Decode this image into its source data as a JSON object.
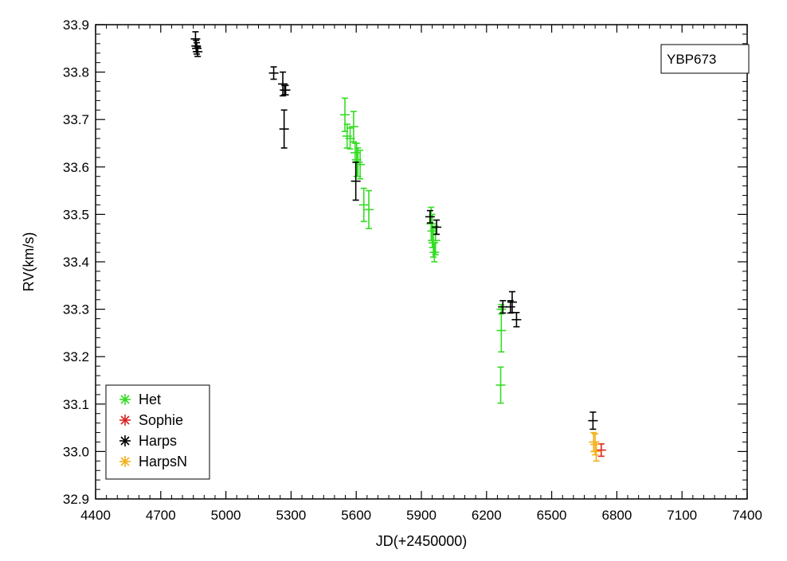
{
  "chart_data": {
    "type": "scatter",
    "title": "",
    "xlabel": "JD(+2450000)",
    "ylabel": "RV(km/s)",
    "xlim": [
      4400,
      7400
    ],
    "ylim": [
      32.9,
      33.9
    ],
    "x_ticks": [
      4400,
      4700,
      5000,
      5300,
      5600,
      5900,
      6200,
      6500,
      6800,
      7100,
      7400
    ],
    "x_tick_labels": [
      "4400",
      "4700",
      "5000",
      "5300",
      "5600",
      "5900",
      "6200",
      "6500",
      "6800",
      "7100",
      "7400"
    ],
    "y_ticks": [
      32.9,
      33.0,
      33.1,
      33.2,
      33.3,
      33.4,
      33.5,
      33.6,
      33.7,
      33.8,
      33.9
    ],
    "y_tick_labels": [
      "32.9",
      "33.0",
      "33.1",
      "33.2",
      "33.3",
      "33.4",
      "33.5",
      "33.6",
      "33.7",
      "33.8",
      "33.9"
    ],
    "grid": false,
    "annotation": "YBP673",
    "legend_position": "bottom-left",
    "series": [
      {
        "name": "Het",
        "color": "#33dd22",
        "marker": "plus-with-error-bar",
        "points": [
          {
            "x": 5548,
            "y": 33.71,
            "err": 0.035
          },
          {
            "x": 5558,
            "y": 33.665,
            "err": 0.025
          },
          {
            "x": 5572,
            "y": 33.66,
            "err": 0.022
          },
          {
            "x": 5588,
            "y": 33.685,
            "err": 0.032
          },
          {
            "x": 5595,
            "y": 33.63,
            "err": 0.02
          },
          {
            "x": 5602,
            "y": 33.615,
            "err": 0.035
          },
          {
            "x": 5608,
            "y": 33.61,
            "err": 0.03
          },
          {
            "x": 5618,
            "y": 33.605,
            "err": 0.03
          },
          {
            "x": 5635,
            "y": 33.52,
            "err": 0.035
          },
          {
            "x": 5658,
            "y": 33.51,
            "err": 0.04
          },
          {
            "x": 5945,
            "y": 33.48,
            "err": 0.035
          },
          {
            "x": 5950,
            "y": 33.465,
            "err": 0.035
          },
          {
            "x": 5955,
            "y": 33.44,
            "err": 0.03
          },
          {
            "x": 5960,
            "y": 33.42,
            "err": 0.02
          },
          {
            "x": 5965,
            "y": 33.445,
            "err": 0.03
          },
          {
            "x": 6268,
            "y": 33.3,
            "err": 0.01
          },
          {
            "x": 6268,
            "y": 33.255,
            "err": 0.045
          },
          {
            "x": 6265,
            "y": 33.14,
            "err": 0.038
          }
        ]
      },
      {
        "name": "Sophie",
        "color": "#dd2222",
        "marker": "plus-with-error-bar",
        "points": [
          {
            "x": 6728,
            "y": 33.003,
            "err": 0.013
          }
        ]
      },
      {
        "name": "Harps",
        "color": "#000000",
        "marker": "plus-with-error-bar",
        "points": [
          {
            "x": 4860,
            "y": 33.87,
            "err": 0.015
          },
          {
            "x": 4863,
            "y": 33.855,
            "err": 0.012
          },
          {
            "x": 4866,
            "y": 33.85,
            "err": 0.012
          },
          {
            "x": 4870,
            "y": 33.843,
            "err": 0.01
          },
          {
            "x": 5220,
            "y": 33.798,
            "err": 0.013
          },
          {
            "x": 5262,
            "y": 33.775,
            "err": 0.025
          },
          {
            "x": 5270,
            "y": 33.762,
            "err": 0.01
          },
          {
            "x": 5275,
            "y": 33.762,
            "err": 0.01
          },
          {
            "x": 5268,
            "y": 33.68,
            "err": 0.04
          },
          {
            "x": 5598,
            "y": 33.57,
            "err": 0.04
          },
          {
            "x": 5940,
            "y": 33.495,
            "err": 0.013
          },
          {
            "x": 5970,
            "y": 33.473,
            "err": 0.015
          },
          {
            "x": 6275,
            "y": 33.305,
            "err": 0.013
          },
          {
            "x": 6310,
            "y": 33.305,
            "err": 0.013
          },
          {
            "x": 6318,
            "y": 33.315,
            "err": 0.022
          },
          {
            "x": 6338,
            "y": 33.278,
            "err": 0.015
          },
          {
            "x": 6690,
            "y": 33.065,
            "err": 0.018
          }
        ]
      },
      {
        "name": "HarpsN",
        "color": "#f2b01a",
        "marker": "plus-with-error-bar",
        "points": [
          {
            "x": 6693,
            "y": 33.02,
            "err": 0.02
          },
          {
            "x": 6700,
            "y": 33.015,
            "err": 0.022
          },
          {
            "x": 6705,
            "y": 33.0,
            "err": 0.02
          }
        ]
      }
    ]
  }
}
